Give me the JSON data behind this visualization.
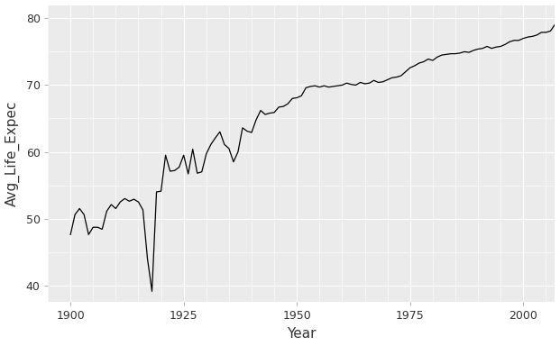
{
  "title": "",
  "xlabel": "Year",
  "ylabel": "Avg_Life_Expec",
  "fig_bg_color": "#FFFFFF",
  "plot_bg_color": "#EBEBEB",
  "line_color": "#000000",
  "line_width": 0.9,
  "grid_color": "#FFFFFF",
  "xlim": [
    1895,
    2007
  ],
  "ylim": [
    37.5,
    82
  ],
  "xticks": [
    1900,
    1925,
    1950,
    1975,
    2000
  ],
  "yticks": [
    40,
    50,
    60,
    70,
    80
  ],
  "tick_labelsize": 9,
  "xlabel_fontsize": 11,
  "ylabel_fontsize": 11,
  "years": [
    1900,
    1901,
    1902,
    1903,
    1904,
    1905,
    1906,
    1907,
    1908,
    1909,
    1910,
    1911,
    1912,
    1913,
    1914,
    1915,
    1916,
    1917,
    1918,
    1919,
    1920,
    1921,
    1922,
    1923,
    1924,
    1925,
    1926,
    1927,
    1928,
    1929,
    1930,
    1931,
    1932,
    1933,
    1934,
    1935,
    1936,
    1937,
    1938,
    1939,
    1940,
    1941,
    1942,
    1943,
    1944,
    1945,
    1946,
    1947,
    1948,
    1949,
    1950,
    1951,
    1952,
    1953,
    1954,
    1955,
    1956,
    1957,
    1958,
    1959,
    1960,
    1961,
    1962,
    1963,
    1964,
    1965,
    1966,
    1967,
    1968,
    1969,
    1970,
    1971,
    1972,
    1973,
    1974,
    1975,
    1976,
    1977,
    1978,
    1979,
    1980,
    1981,
    1982,
    1983,
    1984,
    1985,
    1986,
    1987,
    1988,
    1989,
    1990,
    1991,
    1992,
    1993,
    1994,
    1995,
    1996,
    1997,
    1998,
    1999,
    2000,
    2001,
    2002,
    2003,
    2004,
    2005,
    2006,
    2007
  ],
  "life_exp": [
    47.6,
    50.6,
    51.5,
    50.6,
    47.6,
    48.7,
    48.7,
    48.4,
    51.1,
    52.1,
    51.5,
    52.5,
    53.0,
    52.6,
    52.9,
    52.5,
    51.3,
    44.0,
    39.1,
    54.0,
    54.1,
    59.5,
    57.1,
    57.2,
    57.7,
    59.5,
    56.7,
    60.4,
    56.8,
    57.0,
    59.7,
    61.1,
    62.1,
    63.0,
    61.1,
    60.5,
    58.5,
    60.0,
    63.6,
    63.1,
    62.9,
    64.8,
    66.2,
    65.6,
    65.8,
    65.9,
    66.7,
    66.8,
    67.2,
    68.0,
    68.1,
    68.4,
    69.6,
    69.8,
    69.9,
    69.7,
    69.9,
    69.7,
    69.8,
    69.9,
    70.0,
    70.3,
    70.1,
    70.0,
    70.4,
    70.2,
    70.3,
    70.7,
    70.4,
    70.5,
    70.8,
    71.1,
    71.2,
    71.4,
    72.0,
    72.6,
    72.9,
    73.3,
    73.5,
    73.9,
    73.7,
    74.2,
    74.5,
    74.6,
    74.7,
    74.7,
    74.8,
    75.0,
    74.9,
    75.2,
    75.4,
    75.5,
    75.8,
    75.5,
    75.7,
    75.8,
    76.1,
    76.5,
    76.7,
    76.7,
    77.0,
    77.2,
    77.3,
    77.5,
    77.9,
    77.9,
    78.1,
    79.1
  ]
}
